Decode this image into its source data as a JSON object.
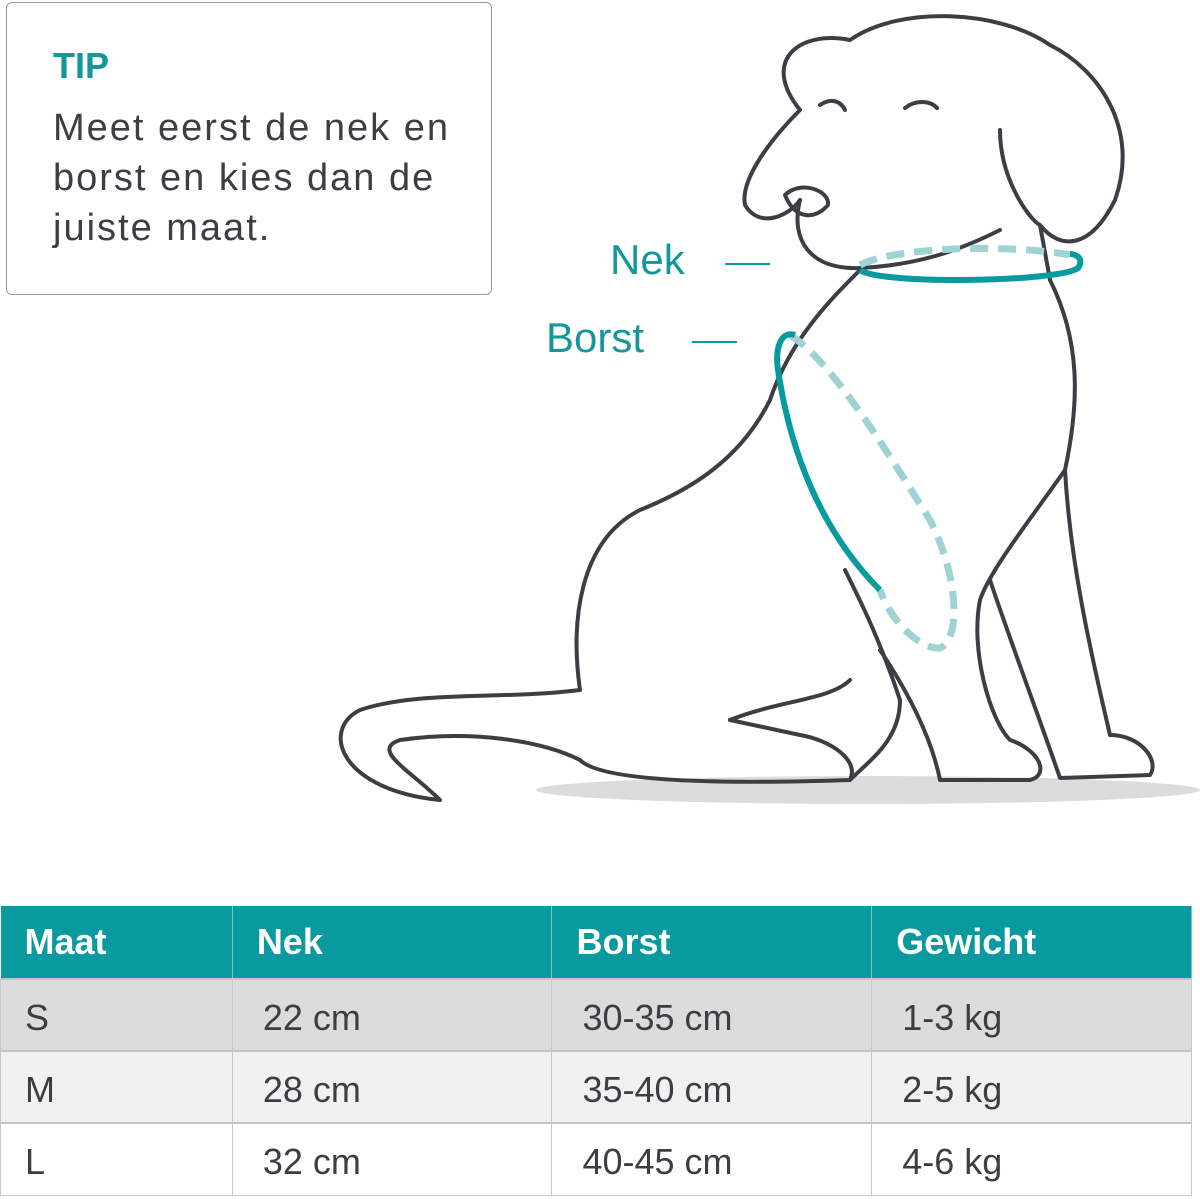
{
  "tip": {
    "title": "TIP",
    "text": "Meet eerst de nek en borst en kies dan de juiste maat."
  },
  "labels": {
    "neck": "Nek",
    "chest": "Borst"
  },
  "colors": {
    "accent": "#099a9f",
    "text": "#3b3f44",
    "outline": "#3b3f44",
    "dashed": "#9fd3d3"
  },
  "illustration": {
    "icon": "sitting-dog-outline"
  },
  "table": {
    "headers": [
      "Maat",
      "Nek",
      "Borst",
      "Gewicht"
    ],
    "rows": [
      [
        "S",
        "22 cm",
        "30-35 cm",
        "1-3 kg"
      ],
      [
        "M",
        "28 cm",
        "35-40 cm",
        "2-5 kg"
      ],
      [
        "L",
        "32 cm",
        "40-45 cm",
        "4-6 kg"
      ]
    ]
  }
}
